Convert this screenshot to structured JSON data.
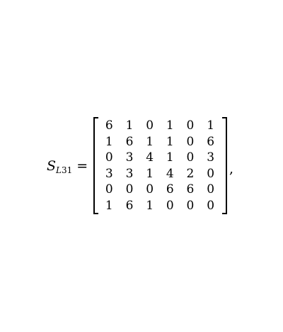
{
  "equation": {
    "symbol": "S",
    "subscript_letter": "L",
    "subscript_number": "31",
    "equals": "=",
    "trailing_punctuation": ",",
    "matrix": [
      [
        "6",
        "1",
        "0",
        "1",
        "0",
        "1"
      ],
      [
        "1",
        "6",
        "1",
        "1",
        "0",
        "6"
      ],
      [
        "0",
        "3",
        "4",
        "1",
        "0",
        "3"
      ],
      [
        "3",
        "3",
        "1",
        "4",
        "2",
        "0"
      ],
      [
        "0",
        "0",
        "0",
        "6",
        "6",
        "0"
      ],
      [
        "1",
        "6",
        "1",
        "0",
        "0",
        "0"
      ]
    ]
  }
}
